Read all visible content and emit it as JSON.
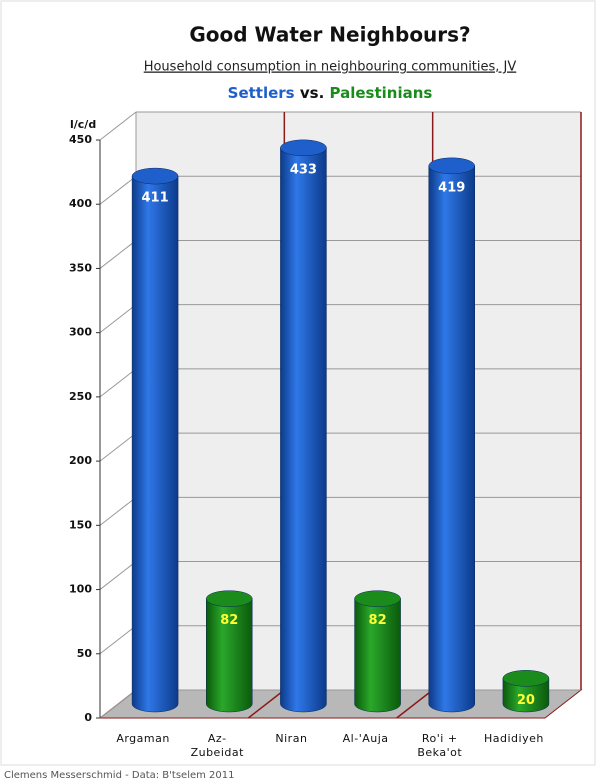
{
  "chart_data": {
    "type": "bar",
    "title": "Good Water Neighbours?",
    "subtitle": "Household consumption in neighbouring communities, JV",
    "legend_joiner": "vs.",
    "y_label": "l/c/d",
    "source": "Clemens Messerschmid  -  Data: B'tselem 2011",
    "categories": [
      "Argaman",
      "Az-Zubeidat",
      "Niran",
      "Al-'Auja",
      "Ro'i + Beka'ot",
      "Hadidiyeh"
    ],
    "series": [
      {
        "name": "Settlers",
        "color": "#1f5fcc",
        "label_color": "#ffffff",
        "values": [
          411,
          null,
          433,
          null,
          419,
          null
        ]
      },
      {
        "name": "Palestinians",
        "color": "#1b8c1b",
        "label_color": "#ffff33",
        "values": [
          null,
          82,
          null,
          82,
          null,
          20
        ]
      }
    ],
    "ylim": [
      0,
      450
    ],
    "yticks": [
      0,
      50,
      100,
      150,
      200,
      250,
      300,
      350,
      400,
      450
    ],
    "grid": true
  }
}
